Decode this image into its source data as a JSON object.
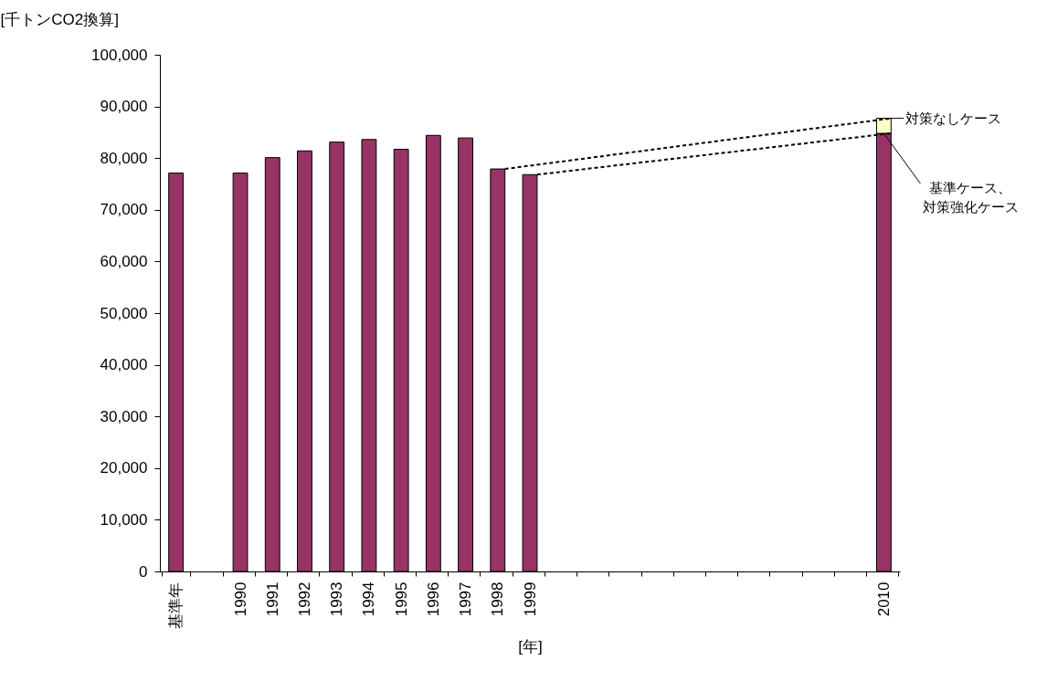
{
  "chart_data": {
    "type": "bar",
    "stacked": true,
    "xlabel": "[年]",
    "ylabel": "[千トンCO2換算]",
    "categories": [
      "基準年",
      null,
      "1990",
      "1991",
      "1992",
      "1993",
      "1994",
      "1995",
      "1996",
      "1997",
      "1998",
      "1999",
      null,
      null,
      null,
      null,
      null,
      null,
      null,
      null,
      null,
      null,
      "2010"
    ],
    "series": [
      {
        "color": "#993366",
        "values": [
          77100,
          null,
          77100,
          80100,
          81400,
          83100,
          83600,
          81700,
          84400,
          83900,
          77900,
          76800,
          null,
          null,
          null,
          null,
          null,
          null,
          null,
          null,
          null,
          null,
          84800
        ]
      },
      {
        "color": "#ffffcc",
        "values": [
          null,
          null,
          null,
          null,
          null,
          null,
          null,
          null,
          null,
          null,
          null,
          null,
          null,
          null,
          null,
          null,
          null,
          null,
          null,
          null,
          null,
          null,
          2900
        ]
      },
      {
        "type": "line",
        "line_style": "dashed",
        "color": "#000000",
        "values": [
          null,
          null,
          null,
          null,
          null,
          null,
          null,
          null,
          null,
          null,
          77900,
          null,
          null,
          null,
          null,
          null,
          null,
          null,
          null,
          null,
          null,
          null,
          87700
        ]
      },
      {
        "type": "line",
        "line_style": "dashed",
        "color": "#000000",
        "values": [
          null,
          null,
          null,
          null,
          null,
          null,
          null,
          null,
          null,
          null,
          null,
          76800,
          null,
          null,
          null,
          null,
          null,
          null,
          null,
          null,
          null,
          null,
          84800
        ]
      }
    ],
    "ylim": [
      0,
      100000
    ],
    "yticks": [
      0,
      {
        "value": 10000,
        "label": "10,000"
      },
      {
        "value": 20000,
        "label": "20,000"
      },
      {
        "value": 30000,
        "label": "30,000"
      },
      {
        "value": 40000,
        "label": "40,000"
      },
      {
        "value": 50000,
        "label": "50,000"
      },
      {
        "value": 60000,
        "label": "60,000"
      },
      {
        "value": 70000,
        "label": "70,000"
      },
      {
        "value": 80000,
        "label": "80,000"
      },
      {
        "value": 90000,
        "label": "90,000"
      },
      {
        "value": 100000,
        "label": "100,000"
      }
    ],
    "annotations": [
      {
        "text": "対策なしケース",
        "x": "2010",
        "y": 87700
      },
      {
        "text": "基準ケース、対策強化ケース",
        "x": "2010",
        "y": 84800
      }
    ]
  }
}
